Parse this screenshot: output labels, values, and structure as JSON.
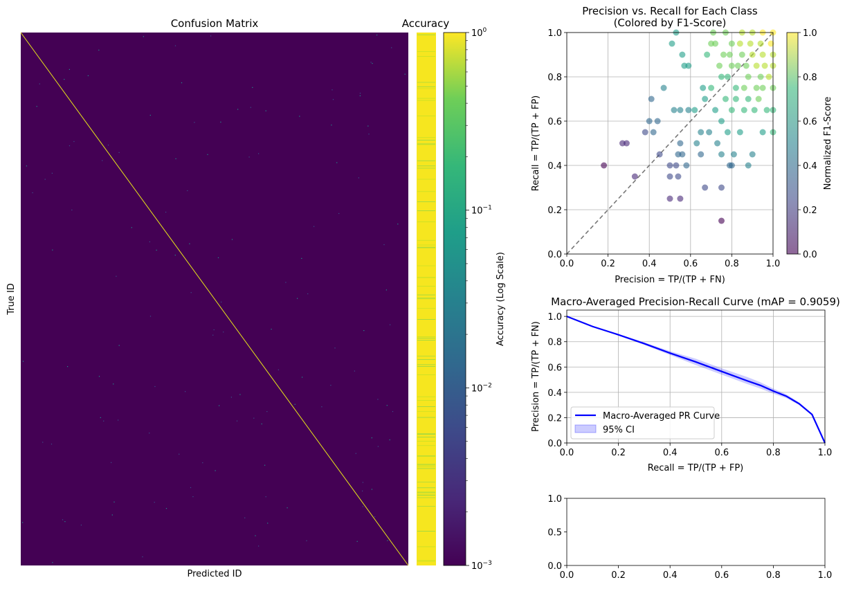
{
  "chart_data": [
    {
      "type": "heatmap",
      "title": "Confusion Matrix",
      "xlabel": "Predicted ID",
      "ylabel": "True ID",
      "structure": "diagonal-dominant",
      "background_value": 0.001,
      "diagonal_value": 1.0,
      "colormap": "viridis",
      "colorbar": {
        "label": "Accuracy (Log Scale)",
        "scale": "log",
        "range": [
          0.001,
          1.0
        ],
        "ticks": [
          0.001,
          0.01,
          0.1,
          1.0
        ],
        "tick_labels": [
          {
            "base": "10",
            "exp": "−3"
          },
          {
            "base": "10",
            "exp": "−2"
          },
          {
            "base": "10",
            "exp": "−1"
          },
          {
            "base": "10",
            "exp": "0"
          }
        ]
      }
    },
    {
      "type": "heatmap",
      "title": "Accuracy",
      "description_values": "per-class accuracy strip, mostly near 1.0 with a few lower-accuracy classes",
      "values_scale": "log"
    },
    {
      "type": "scatter",
      "title": "Precision vs. Recall for Each Class",
      "subtitle": "(Colored by F1-Score)",
      "xlabel": "Precision = TP/(TP + FN)",
      "ylabel": "Recall = TP/(TP + FP)",
      "xlim": [
        0,
        1
      ],
      "ylim": [
        0,
        1
      ],
      "xticks": [
        "0.0",
        "0.2",
        "0.4",
        "0.6",
        "0.8",
        "1.0"
      ],
      "yticks": [
        "0.0",
        "0.2",
        "0.4",
        "0.6",
        "0.8",
        "1.0"
      ],
      "grid": true,
      "reference_line": "y = x (dashed)",
      "colorbar": {
        "label": "Normalized F1-Score",
        "range": [
          0,
          1
        ],
        "ticks": [
          "0.0",
          "0.2",
          "0.4",
          "0.6",
          "0.8",
          "1.0"
        ],
        "colormap": "viridis"
      },
      "points": [
        [
          0.18,
          0.4
        ],
        [
          0.27,
          0.5
        ],
        [
          0.29,
          0.5
        ],
        [
          0.33,
          0.35
        ],
        [
          0.38,
          0.55
        ],
        [
          0.4,
          0.6
        ],
        [
          0.41,
          0.7
        ],
        [
          0.42,
          0.55
        ],
        [
          0.44,
          0.6
        ],
        [
          0.45,
          0.45
        ],
        [
          0.47,
          0.75
        ],
        [
          0.5,
          0.4
        ],
        [
          0.5,
          0.35
        ],
        [
          0.5,
          0.25
        ],
        [
          0.51,
          0.95
        ],
        [
          0.52,
          0.65
        ],
        [
          0.53,
          1.0
        ],
        [
          0.53,
          0.4
        ],
        [
          0.54,
          0.45
        ],
        [
          0.54,
          0.35
        ],
        [
          0.55,
          0.65
        ],
        [
          0.55,
          0.5
        ],
        [
          0.55,
          0.25
        ],
        [
          0.56,
          0.45
        ],
        [
          0.56,
          0.9
        ],
        [
          0.57,
          0.85
        ],
        [
          0.58,
          0.4
        ],
        [
          0.59,
          0.85
        ],
        [
          0.59,
          0.65
        ],
        [
          0.62,
          0.65
        ],
        [
          0.63,
          0.5
        ],
        [
          0.65,
          0.45
        ],
        [
          0.65,
          0.55
        ],
        [
          0.66,
          0.75
        ],
        [
          0.67,
          0.3
        ],
        [
          0.67,
          0.7
        ],
        [
          0.68,
          0.9
        ],
        [
          0.69,
          0.55
        ],
        [
          0.7,
          0.75
        ],
        [
          0.7,
          0.95
        ],
        [
          0.71,
          1.0
        ],
        [
          0.72,
          0.95
        ],
        [
          0.72,
          0.65
        ],
        [
          0.73,
          0.5
        ],
        [
          0.74,
          0.85
        ],
        [
          0.75,
          0.8
        ],
        [
          0.75,
          0.6
        ],
        [
          0.75,
          0.45
        ],
        [
          0.75,
          0.3
        ],
        [
          0.75,
          0.15
        ],
        [
          0.76,
          0.9
        ],
        [
          0.77,
          0.7
        ],
        [
          0.77,
          1.0
        ],
        [
          0.78,
          0.8
        ],
        [
          0.78,
          0.55
        ],
        [
          0.79,
          0.4
        ],
        [
          0.79,
          0.9
        ],
        [
          0.8,
          0.85
        ],
        [
          0.8,
          0.95
        ],
        [
          0.8,
          0.65
        ],
        [
          0.8,
          0.4
        ],
        [
          0.81,
          0.45
        ],
        [
          0.82,
          0.7
        ],
        [
          0.82,
          0.75
        ],
        [
          0.83,
          0.85
        ],
        [
          0.84,
          0.55
        ],
        [
          0.84,
          0.95
        ],
        [
          0.85,
          1.0
        ],
        [
          0.85,
          0.9
        ],
        [
          0.86,
          0.75
        ],
        [
          0.86,
          0.65
        ],
        [
          0.87,
          0.85
        ],
        [
          0.88,
          0.8
        ],
        [
          0.88,
          0.7
        ],
        [
          0.88,
          0.4
        ],
        [
          0.89,
          0.95
        ],
        [
          0.9,
          0.45
        ],
        [
          0.9,
          1.0
        ],
        [
          0.9,
          0.9
        ],
        [
          0.91,
          0.65
        ],
        [
          0.92,
          0.75
        ],
        [
          0.92,
          0.85
        ],
        [
          0.93,
          0.7
        ],
        [
          0.94,
          0.8
        ],
        [
          0.94,
          0.95
        ],
        [
          0.95,
          0.9
        ],
        [
          0.95,
          1.0
        ],
        [
          0.95,
          0.75
        ],
        [
          0.95,
          0.55
        ],
        [
          0.96,
          0.85
        ],
        [
          0.97,
          0.65
        ],
        [
          0.98,
          0.8
        ],
        [
          0.99,
          0.95
        ],
        [
          1.0,
          0.9
        ],
        [
          1.0,
          1.0
        ],
        [
          1.0,
          0.75
        ],
        [
          1.0,
          0.65
        ],
        [
          1.0,
          0.85
        ],
        [
          1.0,
          0.55
        ]
      ]
    },
    {
      "type": "line",
      "title": "Macro-Averaged Precision-Recall Curve (mAP = 0.9059)",
      "xlabel": "Recall = TP/(TP + FP)",
      "ylabel": "Precision = TP/(TP + FN)",
      "xlim": [
        0,
        1
      ],
      "ylim": [
        0,
        1.05
      ],
      "xticks": [
        "0.0",
        "0.2",
        "0.4",
        "0.6",
        "0.8",
        "1.0"
      ],
      "yticks": [
        "0.0",
        "0.2",
        "0.4",
        "0.6",
        "0.8",
        "1.0"
      ],
      "grid": true,
      "legend_position": "lower-left",
      "series": [
        {
          "name": "Macro-Averaged PR Curve",
          "color": "#0000ff",
          "x": [
            0.0,
            0.1,
            0.2,
            0.3,
            0.4,
            0.5,
            0.6,
            0.7,
            0.75,
            0.8,
            0.85,
            0.9,
            0.95,
            1.0
          ],
          "y": [
            1.0,
            0.92,
            0.855,
            0.785,
            0.71,
            0.64,
            0.565,
            0.49,
            0.455,
            0.41,
            0.37,
            0.31,
            0.225,
            0.0
          ]
        }
      ],
      "ci": {
        "name": "95% CI",
        "color": "#0000ff",
        "x": [
          0.0,
          0.1,
          0.2,
          0.3,
          0.4,
          0.5,
          0.6,
          0.7,
          0.75,
          0.8,
          0.85,
          0.9,
          0.95,
          1.0
        ],
        "lower": [
          1.0,
          0.915,
          0.85,
          0.775,
          0.695,
          0.615,
          0.54,
          0.465,
          0.43,
          0.39,
          0.355,
          0.3,
          0.22,
          0.0
        ],
        "upper": [
          1.0,
          0.925,
          0.86,
          0.795,
          0.725,
          0.665,
          0.59,
          0.52,
          0.48,
          0.43,
          0.385,
          0.32,
          0.23,
          0.0
        ]
      }
    },
    {
      "type": "line",
      "title": "",
      "xlim": [
        0,
        1
      ],
      "ylim": [
        0,
        1
      ],
      "xticks": [
        "0.0",
        "0.2",
        "0.4",
        "0.6",
        "0.8",
        "1.0"
      ],
      "yticks": [
        "0.0",
        "0.5",
        "1.0"
      ],
      "series": []
    }
  ]
}
